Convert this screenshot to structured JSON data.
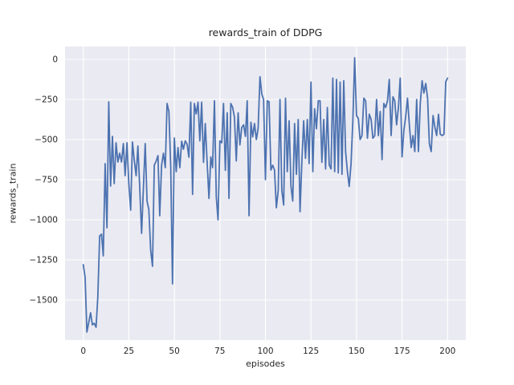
{
  "figure": {
    "background": "#ffffff"
  },
  "chart_data": {
    "type": "line",
    "title": "rewards_train of DDPG",
    "xlabel": "episodes",
    "ylabel": "rewards_train",
    "legend": "none",
    "grid": true,
    "style": "seaborn-darkgrid",
    "plot_bg": "#eaeaf2",
    "grid_color": "#ffffff",
    "line_color": "#4c72b0",
    "text_color": "#262626",
    "xlim": [
      -10,
      210
    ],
    "ylim": [
      -1750,
      80
    ],
    "x_ticks": [
      0,
      25,
      50,
      75,
      100,
      125,
      150,
      175,
      200
    ],
    "x_tick_labels": [
      "0",
      "25",
      "50",
      "75",
      "100",
      "125",
      "150",
      "175",
      "200"
    ],
    "y_ticks": [
      0,
      -250,
      -500,
      -750,
      -1000,
      -1250,
      -1500
    ],
    "y_tick_labels": [
      "0",
      "−250",
      "−500",
      "−750",
      "−1000",
      "−1250",
      "−1500"
    ],
    "x": [
      0,
      1,
      2,
      3,
      4,
      5,
      6,
      7,
      8,
      9,
      10,
      11,
      12,
      13,
      14,
      15,
      16,
      17,
      18,
      19,
      20,
      21,
      22,
      23,
      24,
      25,
      26,
      27,
      28,
      29,
      30,
      31,
      32,
      33,
      34,
      35,
      36,
      37,
      38,
      39,
      40,
      41,
      42,
      43,
      44,
      45,
      46,
      47,
      48,
      49,
      50,
      51,
      52,
      53,
      54,
      55,
      56,
      57,
      58,
      59,
      60,
      61,
      62,
      63,
      64,
      65,
      66,
      67,
      68,
      69,
      70,
      71,
      72,
      73,
      74,
      75,
      76,
      77,
      78,
      79,
      80,
      81,
      82,
      83,
      84,
      85,
      86,
      87,
      88,
      89,
      90,
      91,
      92,
      93,
      94,
      95,
      96,
      97,
      98,
      99,
      100,
      101,
      102,
      103,
      104,
      105,
      106,
      107,
      108,
      109,
      110,
      111,
      112,
      113,
      114,
      115,
      116,
      117,
      118,
      119,
      120,
      121,
      122,
      123,
      124,
      125,
      126,
      127,
      128,
      129,
      130,
      131,
      132,
      133,
      134,
      135,
      136,
      137,
      138,
      139,
      140,
      141,
      142,
      143,
      144,
      145,
      146,
      147,
      148,
      149,
      150,
      151,
      152,
      153,
      154,
      155,
      156,
      157,
      158,
      159,
      160,
      161,
      162,
      163,
      164,
      165,
      166,
      167,
      168,
      169,
      170,
      171,
      172,
      173,
      174,
      175,
      176,
      177,
      178,
      179,
      180,
      181,
      182,
      183,
      184,
      185,
      186,
      187,
      188,
      189,
      190,
      191,
      192,
      193,
      194,
      195,
      196,
      197,
      198,
      199,
      200
    ],
    "values": [
      -1280,
      -1360,
      -1700,
      -1640,
      -1580,
      -1655,
      -1645,
      -1670,
      -1480,
      -1100,
      -1090,
      -1225,
      -650,
      -1050,
      -265,
      -790,
      -480,
      -775,
      -520,
      -640,
      -585,
      -640,
      -525,
      -725,
      -520,
      -775,
      -940,
      -515,
      -630,
      -725,
      -540,
      -800,
      -1085,
      -810,
      -525,
      -885,
      -935,
      -1190,
      -1290,
      -660,
      -635,
      -600,
      -975,
      -660,
      -585,
      -675,
      -275,
      -325,
      -675,
      -1400,
      -490,
      -700,
      -550,
      -675,
      -510,
      -560,
      -508,
      -530,
      -610,
      -267,
      -842,
      -275,
      -340,
      -267,
      -508,
      -267,
      -642,
      -400,
      -642,
      -867,
      -608,
      -675,
      -258,
      -858,
      -1000,
      -508,
      -520,
      -275,
      -692,
      -333,
      -867,
      -275,
      -300,
      -360,
      -633,
      -333,
      -533,
      -425,
      -408,
      -480,
      -258,
      -975,
      -392,
      -483,
      -400,
      -500,
      -430,
      -108,
      -217,
      -250,
      -750,
      -258,
      -265,
      -690,
      -660,
      -690,
      -925,
      -817,
      -250,
      -817,
      -908,
      -242,
      -700,
      -383,
      -792,
      -883,
      -400,
      -717,
      -375,
      -950,
      -633,
      -383,
      -617,
      -375,
      -650,
      -142,
      -700,
      -308,
      -433,
      -258,
      -258,
      -642,
      -375,
      -683,
      -300,
      -658,
      -683,
      -117,
      -700,
      -125,
      -708,
      -142,
      -717,
      -133,
      -575,
      -700,
      -792,
      -650,
      -375,
      10,
      -350,
      -370,
      -500,
      -475,
      -242,
      -258,
      -492,
      -342,
      -375,
      -492,
      -475,
      -250,
      -475,
      -325,
      -625,
      -275,
      -300,
      -258,
      -125,
      -475,
      -233,
      -258,
      -408,
      -300,
      -117,
      -608,
      -442,
      -358,
      -242,
      -408,
      -550,
      -475,
      -575,
      -250,
      -575,
      -275,
      -133,
      -210,
      -150,
      -242,
      -525,
      -575,
      -350,
      -420,
      -475,
      -342,
      -467,
      -475,
      -467,
      -140,
      -117
    ]
  }
}
